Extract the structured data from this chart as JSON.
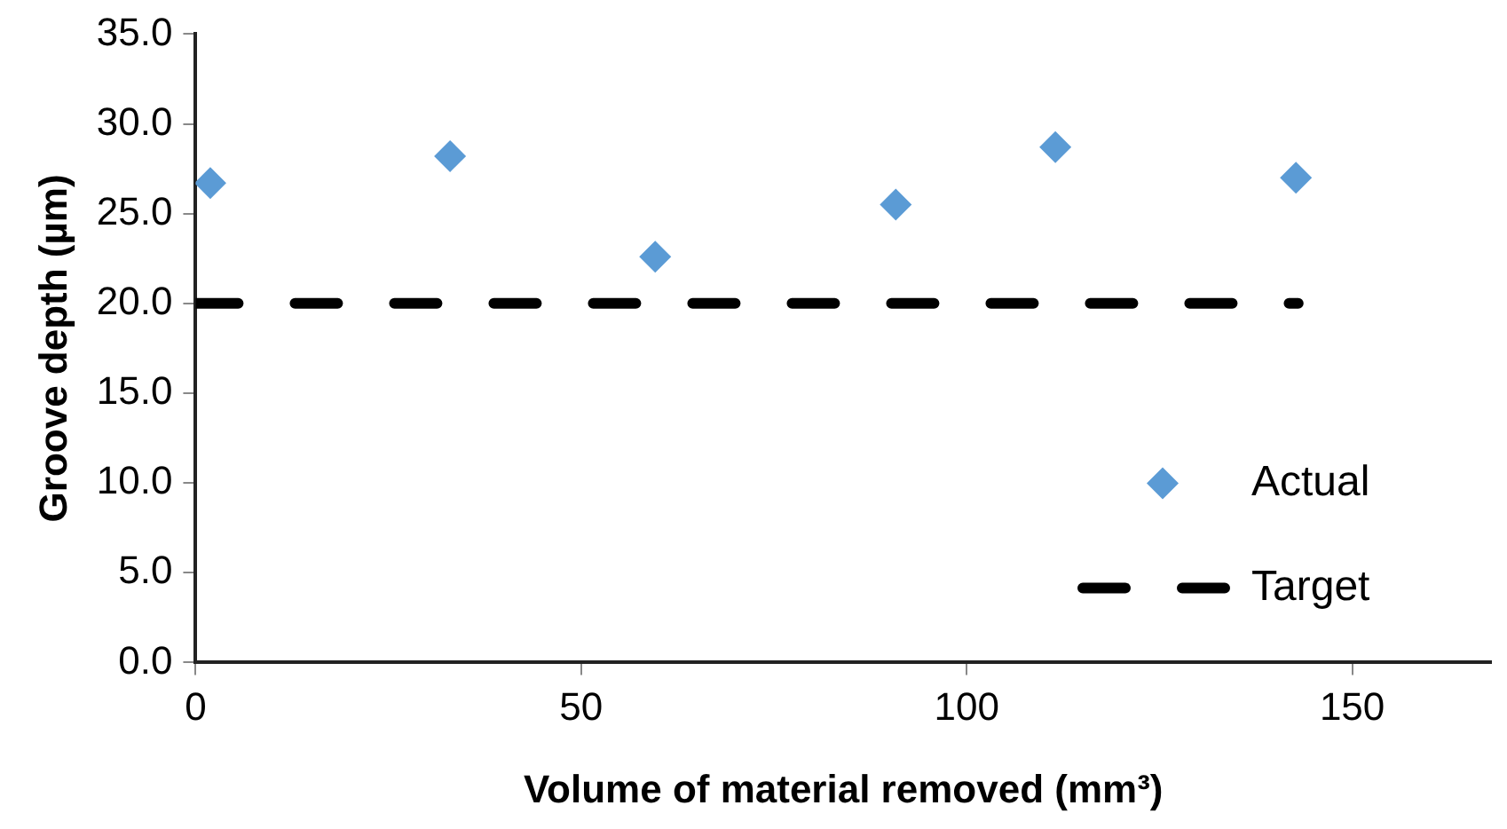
{
  "chart_data": {
    "type": "scatter",
    "xlabel": "Volume of material removed (mm³)",
    "ylabel": "Groove depth (µm)",
    "xlim": [
      0,
      168
    ],
    "xticks": [
      0,
      50,
      100,
      150
    ],
    "ylim": [
      0,
      35
    ],
    "yticks": [
      {
        "value": 0,
        "label": "0.0"
      },
      {
        "value": 5,
        "label": "5.0"
      },
      {
        "value": 10,
        "label": "10.0"
      },
      {
        "value": 15,
        "label": "15.0"
      },
      {
        "value": 20,
        "label": "20.0"
      },
      {
        "value": 25,
        "label": "25.0"
      },
      {
        "value": 30,
        "label": "30.0"
      },
      {
        "value": 35,
        "label": "35.0"
      }
    ],
    "grid": false,
    "legend": "bottom right",
    "series": [
      {
        "name": "Actual",
        "color": "#5b9bd5",
        "marker": "diamond",
        "x": [
          1.9,
          33.0,
          59.6,
          90.8,
          111.5,
          142.7
        ],
        "values": [
          26.7,
          28.2,
          22.6,
          25.5,
          28.7,
          27.0
        ]
      },
      {
        "name": "Target",
        "type": "line",
        "color": "#000000",
        "marker": "none",
        "line_style": "dashed",
        "x": [
          0,
          143
        ],
        "values": [
          20,
          20
        ]
      }
    ]
  }
}
